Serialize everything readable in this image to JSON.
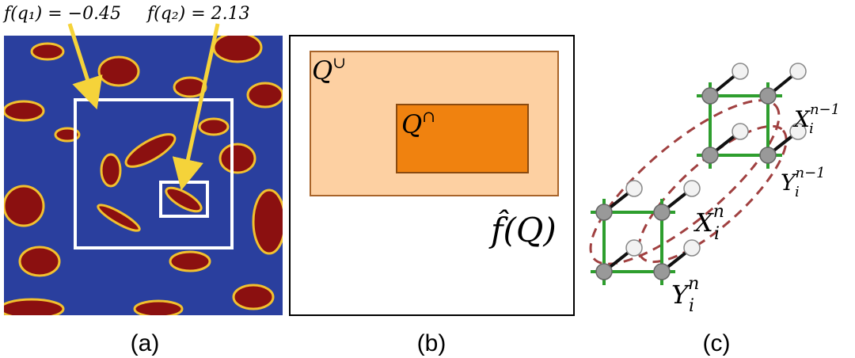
{
  "panel_a": {
    "caption": "(a)",
    "annotations": [
      "f(q₁) = −0.45",
      "f(q₂) = 2.13"
    ]
  },
  "panel_b": {
    "caption": "(b)",
    "union_label": {
      "base": "Q",
      "sup": "∪"
    },
    "intersection_label": {
      "base": "Q",
      "sup": "∩"
    },
    "function_label": "f̂(Q)"
  },
  "panel_c": {
    "caption": "(c)",
    "labels": [
      {
        "base": "X",
        "sub": "i",
        "sup": "n−1"
      },
      {
        "base": "Y",
        "sub": "i",
        "sup": "n−1"
      },
      {
        "base": "X",
        "sub": "i",
        "sup": "n"
      },
      {
        "base": "Y",
        "sub": "i",
        "sup": "n"
      }
    ]
  }
}
